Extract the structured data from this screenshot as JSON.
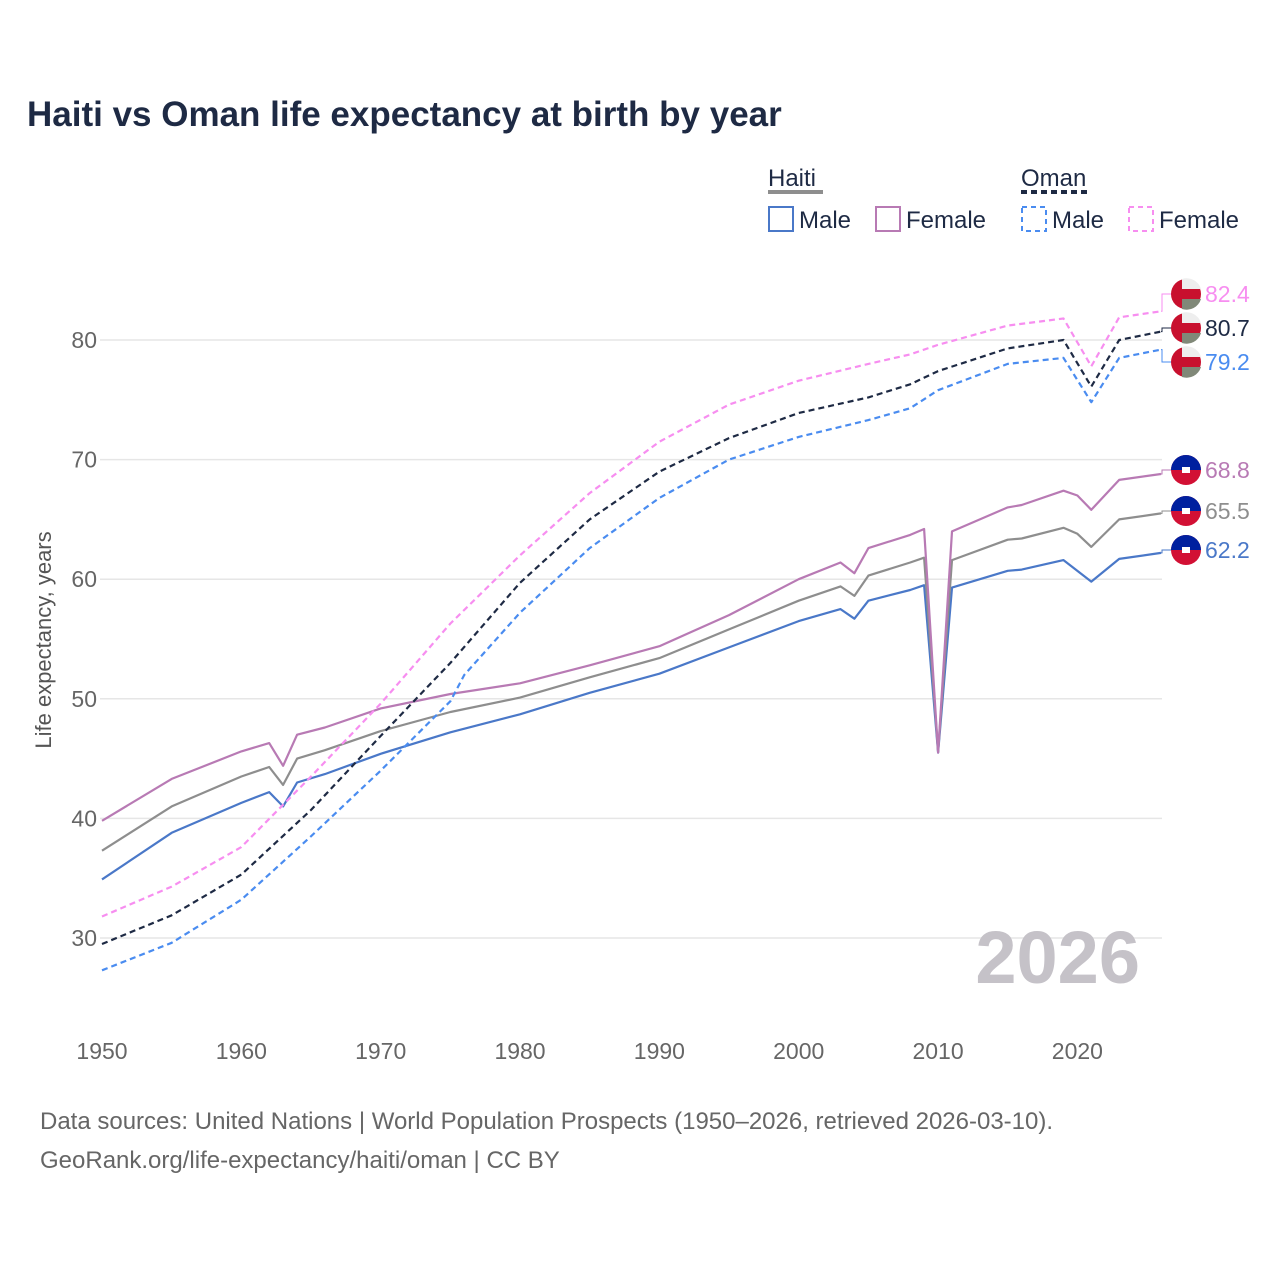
{
  "chart_data": {
    "type": "line",
    "title": "Haiti vs Oman life expectancy at birth by year",
    "ylabel": "Life expectancy, years",
    "xlabel": "",
    "xlim": [
      1950,
      2026
    ],
    "ylim": [
      22,
      86
    ],
    "xticks": [
      1950,
      1960,
      1970,
      1980,
      1990,
      2000,
      2010,
      2020
    ],
    "yticks": [
      30,
      40,
      50,
      60,
      70,
      80
    ],
    "year_watermark": "2026",
    "legend": {
      "placement": "top-right",
      "groups": [
        {
          "name": "Haiti",
          "items": [
            "Male",
            "Female"
          ]
        },
        {
          "name": "Oman",
          "items": [
            "Male",
            "Female"
          ]
        }
      ]
    },
    "series": [
      {
        "name": "Haiti Male",
        "country": "Haiti",
        "color": "#4a78c8",
        "dash": false,
        "end_label": "62.2",
        "x": [
          1950,
          1955,
          1960,
          1962,
          1963,
          1964,
          1966,
          1970,
          1975,
          1980,
          1985,
          1990,
          1995,
          2000,
          2003,
          2004,
          2005,
          2008,
          2009,
          2010,
          2011,
          2015,
          2016,
          2019,
          2021,
          2023,
          2026
        ],
        "y": [
          34.9,
          38.8,
          41.3,
          42.2,
          41.0,
          43.0,
          43.7,
          45.4,
          47.2,
          48.7,
          50.5,
          52.1,
          54.3,
          56.5,
          57.5,
          56.7,
          58.2,
          59.1,
          59.5,
          45.5,
          59.3,
          60.7,
          60.8,
          61.6,
          59.8,
          61.7,
          62.2
        ]
      },
      {
        "name": "Haiti Total",
        "country": "Haiti",
        "color": "#8e8e8e",
        "dash": false,
        "end_label": "65.5",
        "x": [
          1950,
          1955,
          1960,
          1962,
          1963,
          1964,
          1966,
          1970,
          1975,
          1980,
          1985,
          1990,
          1995,
          2000,
          2003,
          2004,
          2005,
          2008,
          2009,
          2010,
          2011,
          2015,
          2016,
          2019,
          2020,
          2021,
          2023,
          2026
        ],
        "y": [
          37.3,
          41.0,
          43.5,
          44.3,
          42.8,
          45.0,
          45.7,
          47.3,
          48.9,
          50.1,
          51.8,
          53.4,
          55.8,
          58.2,
          59.4,
          58.6,
          60.3,
          61.4,
          61.8,
          45.6,
          61.6,
          63.3,
          63.4,
          64.3,
          63.8,
          62.7,
          65.0,
          65.5
        ]
      },
      {
        "name": "Haiti Female",
        "country": "Haiti",
        "color": "#b87ab4",
        "dash": false,
        "end_label": "68.8",
        "x": [
          1950,
          1955,
          1960,
          1962,
          1963,
          1964,
          1966,
          1970,
          1975,
          1980,
          1985,
          1990,
          1995,
          2000,
          2003,
          2004,
          2005,
          2008,
          2009,
          2010,
          2011,
          2015,
          2016,
          2019,
          2020,
          2021,
          2023,
          2026
        ],
        "y": [
          39.8,
          43.3,
          45.6,
          46.3,
          44.4,
          47.0,
          47.6,
          49.2,
          50.4,
          51.3,
          52.8,
          54.4,
          57.0,
          60.0,
          61.4,
          60.5,
          62.6,
          63.7,
          64.2,
          45.5,
          64.0,
          66.0,
          66.2,
          67.4,
          67.0,
          65.8,
          68.3,
          68.8
        ]
      },
      {
        "name": "Oman Total",
        "country": "Oman",
        "color": "#1e2a44",
        "dash": true,
        "end_label": "80.7",
        "x": [
          1950,
          1955,
          1960,
          1965,
          1970,
          1975,
          1980,
          1985,
          1990,
          1995,
          2000,
          2005,
          2008,
          2010,
          2015,
          2019,
          2021,
          2023,
          2026
        ],
        "y": [
          29.5,
          31.9,
          35.3,
          40.7,
          46.9,
          53.0,
          59.7,
          65.0,
          69.0,
          71.8,
          73.9,
          75.2,
          76.3,
          77.4,
          79.3,
          80.0,
          76.1,
          80.0,
          80.7
        ]
      },
      {
        "name": "Oman Male",
        "country": "Oman",
        "color": "#4a8cf0",
        "dash": true,
        "end_label": "79.2",
        "x": [
          1950,
          1955,
          1960,
          1965,
          1970,
          1975,
          1976,
          1980,
          1985,
          1990,
          1995,
          2000,
          2005,
          2008,
          2010,
          2015,
          2019,
          2021,
          2023,
          2026
        ],
        "y": [
          27.3,
          29.6,
          33.2,
          38.5,
          44.0,
          49.8,
          52.0,
          57.2,
          62.6,
          66.8,
          70.0,
          71.9,
          73.3,
          74.3,
          75.8,
          78.0,
          78.5,
          74.8,
          78.5,
          79.2
        ]
      },
      {
        "name": "Oman Female",
        "country": "Oman",
        "color": "#f78ef0",
        "dash": true,
        "end_label": "82.4",
        "x": [
          1950,
          1955,
          1960,
          1965,
          1970,
          1975,
          1980,
          1985,
          1990,
          1995,
          2000,
          2005,
          2008,
          2010,
          2015,
          2019,
          2021,
          2023,
          2026
        ],
        "y": [
          31.8,
          34.3,
          37.6,
          43.5,
          49.6,
          56.3,
          62.0,
          67.2,
          71.5,
          74.6,
          76.6,
          78.0,
          78.8,
          79.6,
          81.2,
          81.8,
          77.8,
          81.9,
          82.4
        ]
      }
    ]
  },
  "source_line1": "Data sources: United Nations | World Population Prospects (1950–2026, retrieved 2026-03-10).",
  "source_line2": "GeoRank.org/life-expectancy/haiti/oman | CC BY"
}
